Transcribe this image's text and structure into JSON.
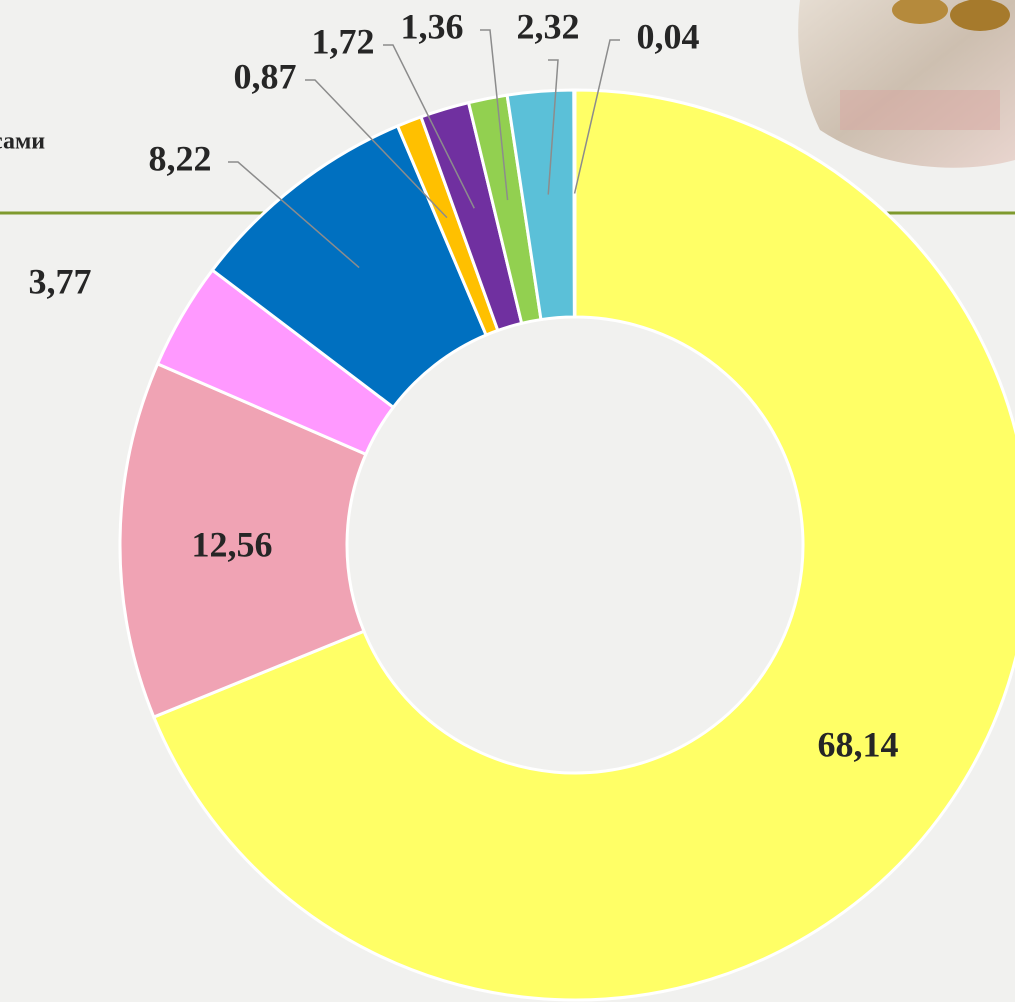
{
  "chart_data": {
    "type": "donut",
    "title": "сами",
    "categories": null,
    "values": [
      68.14,
      12.56,
      3.77,
      8.22,
      0.87,
      1.72,
      1.36,
      2.32,
      0.04
    ],
    "value_labels": [
      "68,14",
      "12,56",
      "3,77",
      "8,22",
      "0,87",
      "1,72",
      "1,36",
      "2,32",
      "0,04"
    ],
    "colors": [
      "#ffff66",
      "#f0a3b4",
      "#ff99ff",
      "#0070c0",
      "#ffc000",
      "#7030a0",
      "#92d050",
      "#5bc0d8",
      "#d9d9d9"
    ]
  }
}
